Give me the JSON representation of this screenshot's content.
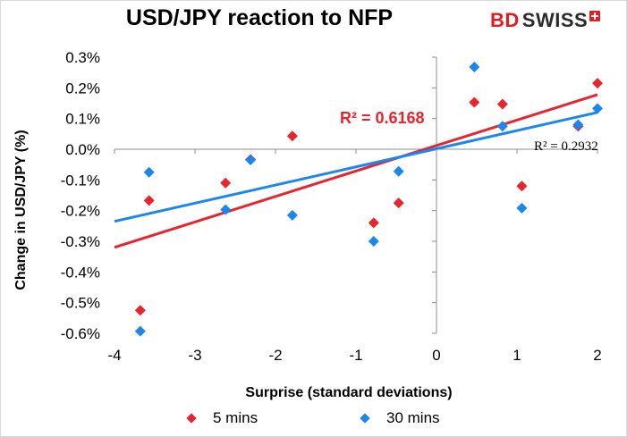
{
  "title": "USD/JPY reaction to NFP",
  "logo": {
    "text_bd": "BD",
    "text_swiss": "SWISS"
  },
  "chart_data": {
    "type": "scatter",
    "title": "USD/JPY reaction to NFP",
    "xlabel": "Surprise (standard deviations)",
    "ylabel": "Change in USD/JPY  (%)",
    "xlim": [
      -4,
      2
    ],
    "ylim": [
      -0.6,
      0.3
    ],
    "x_ticks": [
      -4,
      -3,
      -2,
      -1,
      0,
      1,
      2
    ],
    "y_ticks": [
      0.3,
      0.2,
      0.1,
      0.0,
      -0.1,
      -0.2,
      -0.3,
      -0.4,
      -0.5,
      -0.6
    ],
    "y_tick_labels": [
      "0.3%",
      "0.2%",
      "0.1%",
      "0.0%",
      "-0.1%",
      "-0.2%",
      "-0.3%",
      "-0.4%",
      "-0.5%",
      "-0.6%"
    ],
    "grid": false,
    "legend_position": "bottom",
    "series": [
      {
        "name": "5 mins",
        "color": "#e8252e",
        "marker": "diamond",
        "points": [
          [
            -3.68,
            -0.525
          ],
          [
            -3.57,
            -0.167
          ],
          [
            -2.62,
            -0.11
          ],
          [
            -2.31,
            -0.033
          ],
          [
            -1.79,
            0.043
          ],
          [
            -0.78,
            -0.24
          ],
          [
            -0.47,
            -0.175
          ],
          [
            0.47,
            0.153
          ],
          [
            0.82,
            0.147
          ],
          [
            1.06,
            -0.12
          ],
          [
            1.76,
            0.075
          ],
          [
            2.0,
            0.215
          ]
        ],
        "trendline": {
          "x": [
            -4,
            2
          ],
          "y": [
            -0.32,
            0.178
          ]
        },
        "r2_label": "R² = 0.6168"
      },
      {
        "name": "30 mins",
        "color": "#1a86f0",
        "marker": "diamond",
        "points": [
          [
            -3.68,
            -0.593
          ],
          [
            -3.57,
            -0.075
          ],
          [
            -2.62,
            -0.197
          ],
          [
            -2.31,
            -0.035
          ],
          [
            -1.79,
            -0.215
          ],
          [
            -0.78,
            -0.3
          ],
          [
            -0.47,
            -0.072
          ],
          [
            0.47,
            0.268
          ],
          [
            0.82,
            0.075
          ],
          [
            1.06,
            -0.192
          ],
          [
            1.76,
            0.08
          ],
          [
            2.0,
            0.133
          ]
        ],
        "trendline": {
          "x": [
            -4,
            2
          ],
          "y": [
            -0.235,
            0.12
          ]
        },
        "r2_label": "R² = 0.2932"
      }
    ]
  },
  "legend": [
    {
      "label": "5 mins",
      "color": "#e8252e"
    },
    {
      "label": "30 mins",
      "color": "#1a86f0"
    }
  ]
}
